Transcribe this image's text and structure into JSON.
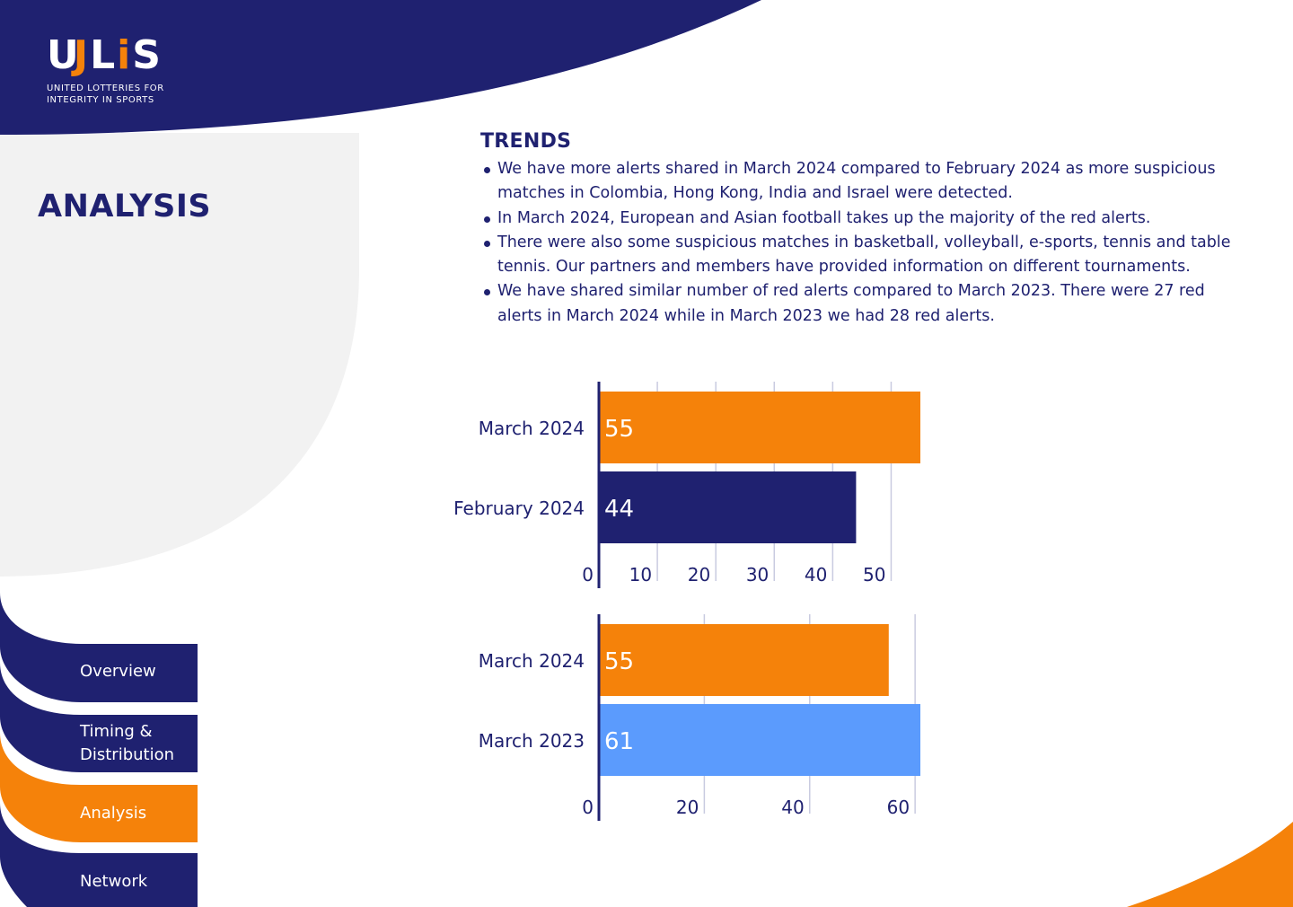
{
  "brand": {
    "logo_parts": [
      "U",
      "J",
      "L",
      "i",
      "S"
    ],
    "logo_text": "ULiS",
    "tagline_line1": "UNITED LOTTERIES FOR",
    "tagline_line2": "INTEGRITY IN SPORTS",
    "colors": {
      "navy": "#1f2170",
      "orange": "#f5820a",
      "light_blue": "#5b9bfd",
      "panel_grey": "#f2f2f2"
    }
  },
  "section_title": "ANALYSIS",
  "trends": {
    "title": "TRENDS",
    "bullets": [
      "We have more alerts shared in March 2024 compared to February 2024 as more suspicious matches in Colombia, Hong Kong, India and Israel were detected.",
      "In March 2024, European and Asian football takes up the majority of the red alerts.",
      "There were also some suspicious matches in basketball, volleyball, e-sports, tennis and table tennis. Our partners and members have provided information on different tournaments.",
      "We have shared similar number of red alerts compared to March 2023. There were 27 red alerts in March 2024 while in March 2023 we had 28 red alerts."
    ]
  },
  "chart_data": [
    {
      "type": "bar",
      "orientation": "horizontal",
      "categories": [
        "March 2024",
        "February 2024"
      ],
      "values": [
        55,
        44
      ],
      "colors": [
        "#f5820a",
        "#1f2170"
      ],
      "xlim": [
        0,
        55
      ],
      "ticks": [
        0,
        10,
        20,
        30,
        40,
        50
      ],
      "grid": true
    },
    {
      "type": "bar",
      "orientation": "horizontal",
      "categories": [
        "March 2024",
        "March 2023"
      ],
      "values": [
        55,
        61
      ],
      "colors": [
        "#f5820a",
        "#5b9bfd"
      ],
      "xlim": [
        0,
        61
      ],
      "ticks": [
        0,
        20,
        40,
        60
      ],
      "grid": true
    }
  ],
  "nav": {
    "items": [
      {
        "label": "Overview",
        "active": false
      },
      {
        "label": "Timing &\nDistribution",
        "active": false
      },
      {
        "label": "Analysis",
        "active": true
      },
      {
        "label": "Network",
        "active": false
      }
    ]
  }
}
